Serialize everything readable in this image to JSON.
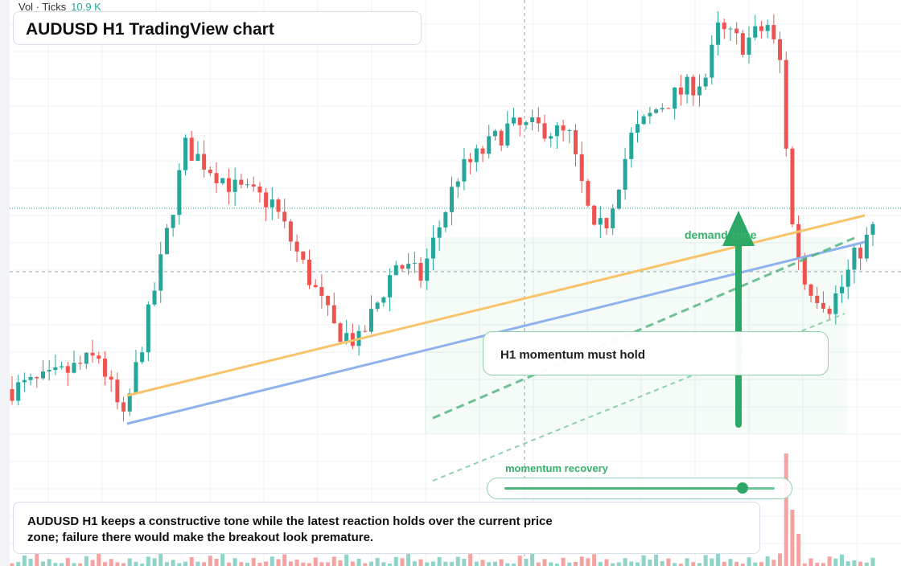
{
  "header": {
    "vol_label": "Vol · Ticks",
    "vol_value": "10.9 K",
    "title": "AUDUSD H1 TradingView chart"
  },
  "annotations": {
    "callout": "H1 momentum must hold",
    "demand_label": "demand zone",
    "momentum_label": "momentum recovery",
    "momentum_level": 0.88,
    "summary": "AUDUSD H1 keeps a constructive tone while the latest reaction holds over the current price zone; failure there would make the breakout look premature."
  },
  "colors": {
    "up": "#26a69a",
    "down": "#ef5350",
    "up_volume": "#8fd3c9",
    "down_volume": "#f5a3a1",
    "trend_orange": "#f7c46c",
    "trend_blue": "#8fb2ec",
    "accent_green": "#2ea866",
    "grid": "#eef1f5"
  },
  "chart_data": {
    "type": "candlestick",
    "symbol": "AUDUSD",
    "timeframe": "H1",
    "candle_count": 140,
    "close_path": [
      [
        0,
        0.2
      ],
      [
        6,
        0.22
      ],
      [
        14,
        0.27
      ],
      [
        18,
        0.13
      ],
      [
        24,
        0.47
      ],
      [
        28,
        0.72
      ],
      [
        36,
        0.63
      ],
      [
        42,
        0.6
      ],
      [
        52,
        0.33
      ],
      [
        56,
        0.3
      ],
      [
        62,
        0.47
      ],
      [
        66,
        0.44
      ],
      [
        72,
        0.66
      ],
      [
        80,
        0.76
      ],
      [
        86,
        0.76
      ],
      [
        90,
        0.74
      ],
      [
        94,
        0.53
      ],
      [
        96,
        0.56
      ],
      [
        100,
        0.74
      ],
      [
        104,
        0.8
      ],
      [
        106,
        0.82
      ],
      [
        112,
        0.87
      ],
      [
        114,
        0.97
      ],
      [
        118,
        0.94
      ],
      [
        122,
        0.98
      ],
      [
        124,
        0.9
      ],
      [
        126,
        0.55
      ],
      [
        128,
        0.43
      ],
      [
        132,
        0.38
      ],
      [
        134,
        0.42
      ],
      [
        136,
        0.48
      ],
      [
        139,
        0.54
      ]
    ],
    "volume_profile": [
      0.02,
      0.02,
      0.08,
      0.05,
      0.1,
      0.03,
      0.05,
      0.02,
      0.02,
      0.06
    ],
    "volume_spike_index": 125
  }
}
